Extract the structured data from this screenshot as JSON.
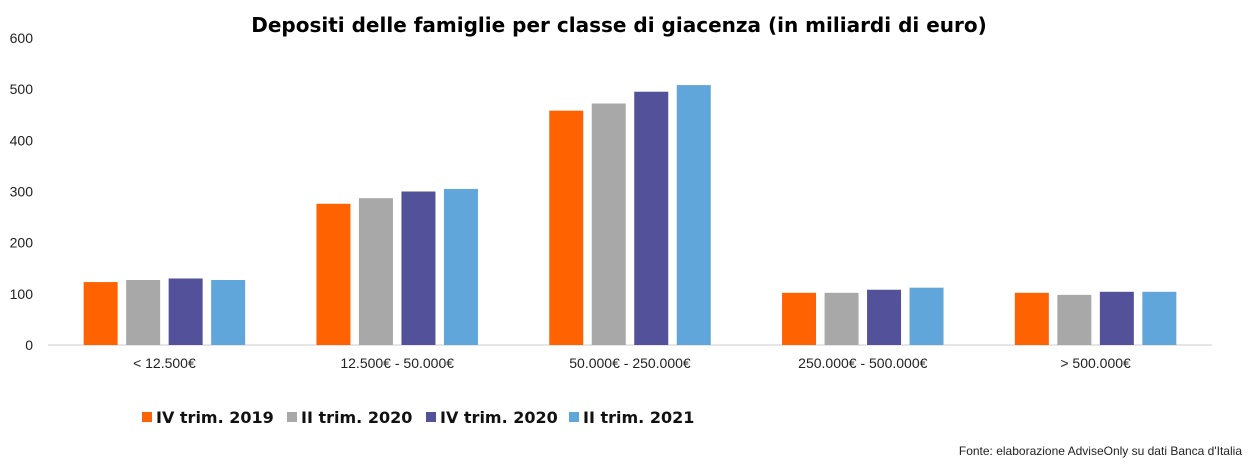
{
  "chart_data": {
    "type": "bar",
    "title": "Depositi delle famiglie per classe di giacenza (in miliardi di euro)",
    "categories": [
      "< 12.500€",
      "12.500€ - 50.000€",
      "50.000€ - 250.000€",
      "250.000€ - 500.000€",
      "> 500.000€"
    ],
    "series": [
      {
        "name": "IV trim. 2019",
        "color": "#FF6200",
        "values": [
          123,
          276,
          458,
          102,
          102
        ]
      },
      {
        "name": "II trim. 2020",
        "color": "#A8A8A8",
        "values": [
          127,
          287,
          472,
          102,
          98
        ]
      },
      {
        "name": "IV trim. 2020",
        "color": "#525199",
        "values": [
          130,
          300,
          495,
          108,
          104
        ]
      },
      {
        "name": "II trim. 2021",
        "color": "#60A6DA",
        "values": [
          127,
          305,
          508,
          112,
          104
        ]
      }
    ],
    "ylim": [
      0,
      600
    ],
    "yticks": [
      0,
      100,
      200,
      300,
      400,
      500,
      600
    ],
    "grid": false,
    "legend": "bottom",
    "source": "Fonte: elaborazione AdviseOnly su dati Banca d'Italia"
  }
}
